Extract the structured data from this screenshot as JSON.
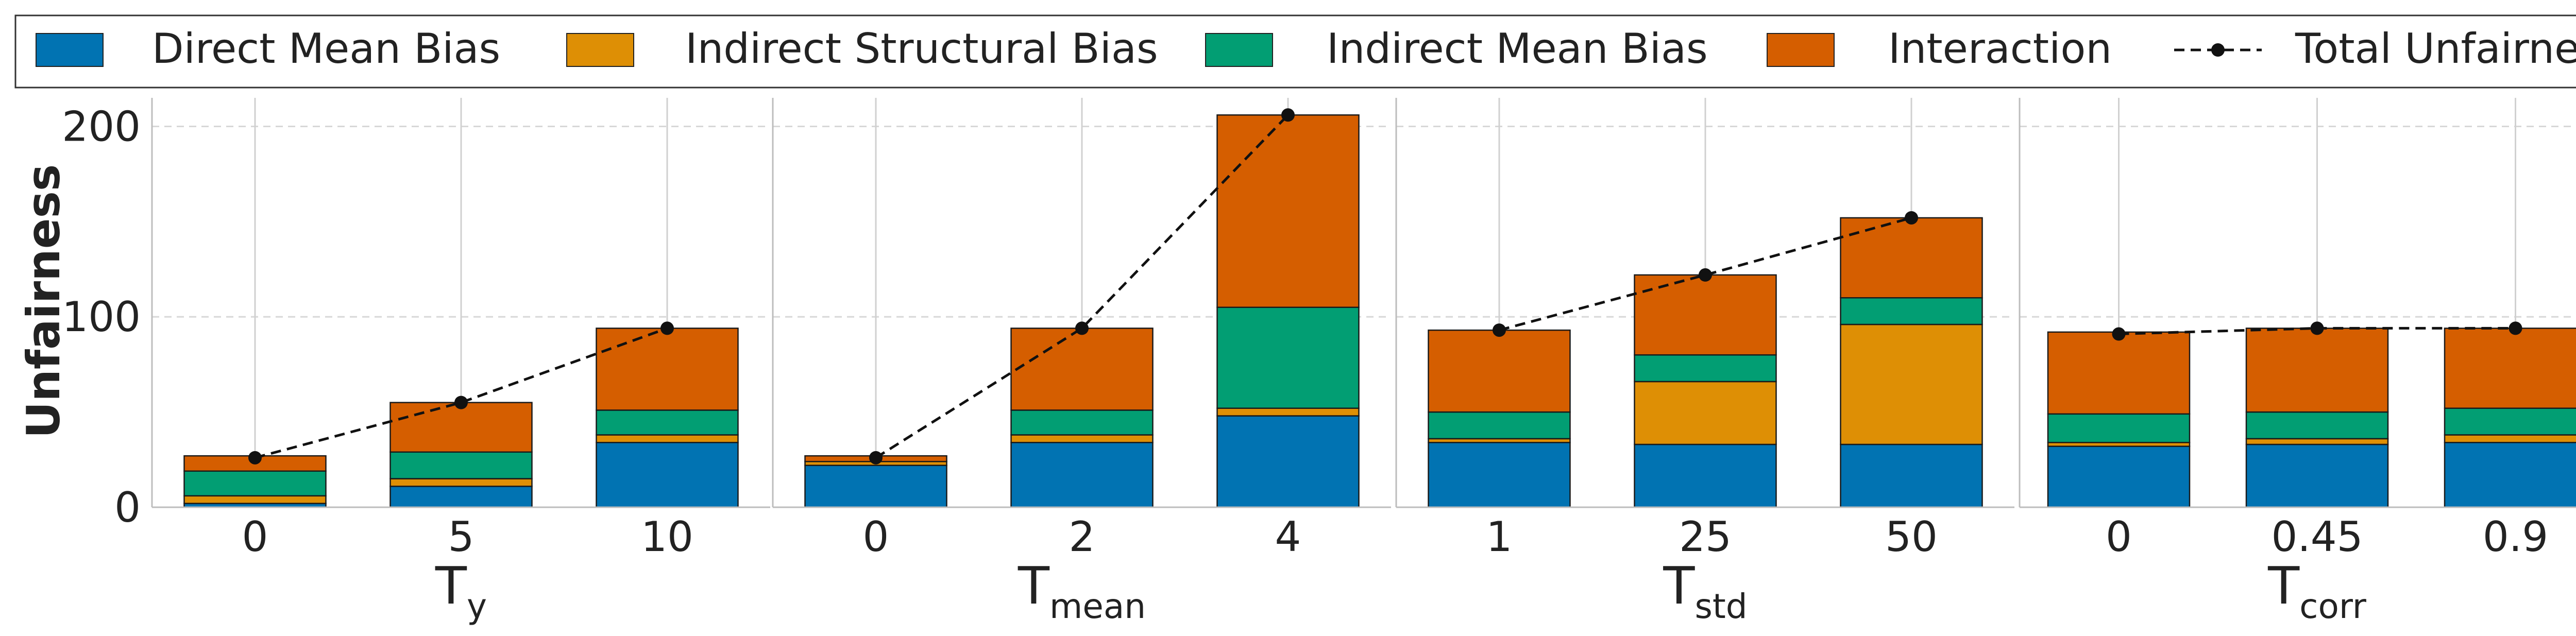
{
  "chart_data": {
    "type": "bar",
    "stacked": true,
    "ylabel": "Unfairness",
    "ylim": [
      0,
      215
    ],
    "y_ticks": [
      0,
      100,
      200
    ],
    "grid": true,
    "legend_position": "top",
    "series_styles": [
      {
        "name": "Direct Mean Bias",
        "color": "#0173b2"
      },
      {
        "name": "Indirect Structural Bias",
        "color": "#de8f05"
      },
      {
        "name": "Indirect Mean Bias",
        "color": "#029e73"
      },
      {
        "name": "Interaction",
        "color": "#d55e00"
      }
    ],
    "total_series": {
      "name": "Total Unfairness",
      "color": "#111111",
      "style": "dashed-line-with-markers"
    },
    "panels": [
      {
        "xlabel_main": "T",
        "xlabel_sub": "y",
        "categories": [
          "0",
          "5",
          "10"
        ],
        "series": [
          {
            "name": "Direct Mean Bias",
            "values": [
              2,
              11,
              34
            ]
          },
          {
            "name": "Indirect Structural Bias",
            "values": [
              4,
              4,
              4
            ]
          },
          {
            "name": "Indirect Mean Bias",
            "values": [
              13,
              14,
              13
            ]
          },
          {
            "name": "Interaction",
            "values": [
              8,
              26,
              43
            ]
          }
        ],
        "total": [
          26,
          55,
          94
        ]
      },
      {
        "xlabel_main": "T",
        "xlabel_sub": "mean",
        "categories": [
          "0",
          "2",
          "4"
        ],
        "series": [
          {
            "name": "Direct Mean Bias",
            "values": [
              22,
              34,
              48
            ]
          },
          {
            "name": "Indirect Structural Bias",
            "values": [
              2,
              4,
              4
            ]
          },
          {
            "name": "Indirect Mean Bias",
            "values": [
              0,
              13,
              53
            ]
          },
          {
            "name": "Interaction",
            "values": [
              3,
              43,
              101
            ]
          }
        ],
        "total": [
          26,
          94,
          206
        ]
      },
      {
        "xlabel_main": "T",
        "xlabel_sub": "std",
        "categories": [
          "1",
          "25",
          "50"
        ],
        "series": [
          {
            "name": "Direct Mean Bias",
            "values": [
              34,
              33,
              33
            ]
          },
          {
            "name": "Indirect Structural Bias",
            "values": [
              2,
              33,
              63
            ]
          },
          {
            "name": "Indirect Mean Bias",
            "values": [
              14,
              14,
              14
            ]
          },
          {
            "name": "Interaction",
            "values": [
              43,
              42,
              42
            ]
          }
        ],
        "total": [
          93,
          122,
          152
        ]
      },
      {
        "xlabel_main": "T",
        "xlabel_sub": "corr",
        "categories": [
          "0",
          "0.45",
          "0.9"
        ],
        "series": [
          {
            "name": "Direct Mean Bias",
            "values": [
              32,
              33,
              34
            ]
          },
          {
            "name": "Indirect Structural Bias",
            "values": [
              2,
              3,
              4
            ]
          },
          {
            "name": "Indirect Mean Bias",
            "values": [
              15,
              14,
              14
            ]
          },
          {
            "name": "Interaction",
            "values": [
              43,
              44,
              42
            ]
          }
        ],
        "total": [
          91,
          94,
          94
        ]
      }
    ]
  }
}
